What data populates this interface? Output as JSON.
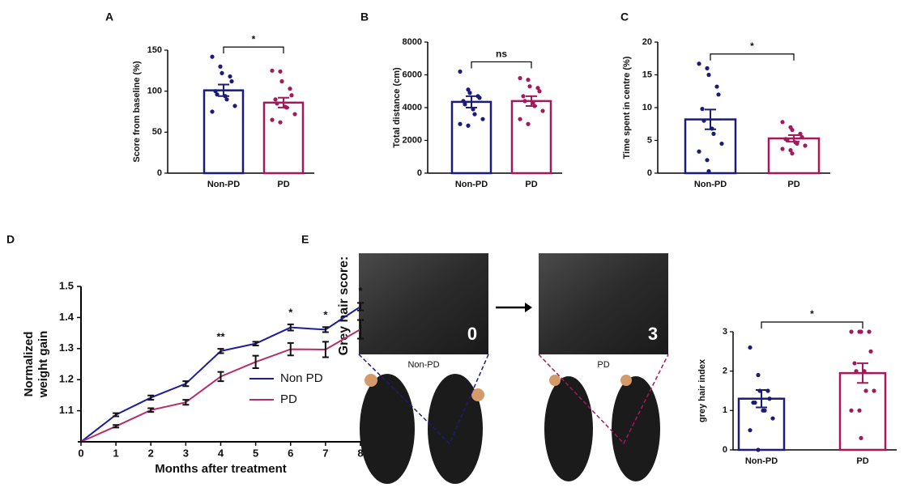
{
  "chart_data": [
    {
      "type": "bar",
      "panel": "A",
      "ylabel": "Score from baseline (%)",
      "categories": [
        "Non-PD",
        "PD"
      ],
      "colors": [
        "#1c1c78",
        "#a3195b"
      ],
      "values": [
        101,
        86
      ],
      "errors": [
        7,
        6
      ],
      "points": [
        [
          142,
          130,
          122,
          118,
          112,
          100,
          96,
          94,
          90,
          82,
          75
        ],
        [
          125,
          124,
          112,
          103,
          95,
          90,
          85,
          81,
          80,
          72,
          65,
          62
        ]
      ],
      "significance": "*",
      "ylim": [
        0,
        150
      ],
      "yticks": [
        0,
        50,
        100,
        150
      ]
    },
    {
      "type": "bar",
      "panel": "B",
      "ylabel": "Total distance (cm)",
      "categories": [
        "Non-PD",
        "PD"
      ],
      "colors": [
        "#1c1c78",
        "#a3195b"
      ],
      "values": [
        4350,
        4400
      ],
      "errors": [
        350,
        300
      ],
      "points": [
        [
          6200,
          5100,
          4900,
          4700,
          4600,
          4400,
          4200,
          3900,
          3600,
          3300,
          3000,
          2900
        ],
        [
          5800,
          5700,
          5300,
          5200,
          5000,
          4700,
          4400,
          4300,
          4100,
          3800,
          3300,
          3000
        ]
      ],
      "significance": "ns",
      "ylim": [
        0,
        8000
      ],
      "yticks": [
        0,
        2000,
        4000,
        6000,
        8000
      ]
    },
    {
      "type": "bar",
      "panel": "C",
      "ylabel": "Time spent in centre (%)",
      "categories": [
        "Non-PD",
        "PD"
      ],
      "colors": [
        "#1c1c78",
        "#a3195b"
      ],
      "values": [
        8.2,
        5.3
      ],
      "errors": [
        1.5,
        0.5
      ],
      "points": [
        [
          16.7,
          16,
          15,
          13.2,
          12,
          9.8,
          8,
          6.8,
          6,
          4.5,
          3.3,
          2,
          0.3
        ],
        [
          7.8,
          7,
          6.6,
          6,
          5.5,
          5.2,
          5,
          4.7,
          4.5,
          4.2,
          3.7,
          3.5,
          3
        ]
      ],
      "significance": "*",
      "ylim": [
        0,
        20
      ],
      "yticks": [
        0,
        5,
        10,
        15,
        20
      ]
    },
    {
      "type": "line",
      "panel": "D",
      "xlabel": "Months after treatment",
      "ylabel": [
        "Normalized",
        "weight gain"
      ],
      "x": [
        0,
        1,
        2,
        3,
        4,
        5,
        6,
        7,
        8
      ],
      "series": [
        {
          "name": "Non PD",
          "color": "#1c1c9c",
          "values": [
            1.0,
            1.087,
            1.142,
            1.187,
            1.292,
            1.316,
            1.368,
            1.361,
            1.435
          ],
          "errors": [
            0,
            0.005,
            0.007,
            0.008,
            0.007,
            0.006,
            0.01,
            0.008,
            0.012
          ]
        },
        {
          "name": "PD",
          "color": "#b42d6c",
          "values": [
            1.0,
            1.05,
            1.102,
            1.127,
            1.21,
            1.257,
            1.298,
            1.297,
            1.362
          ],
          "errors": [
            0,
            0.004,
            0.006,
            0.008,
            0.015,
            0.02,
            0.02,
            0.025,
            0.03
          ]
        }
      ],
      "annotations": [
        {
          "x": 4,
          "text": "**"
        },
        {
          "x": 6,
          "text": "*"
        },
        {
          "x": 7,
          "text": "*"
        },
        {
          "x": 8,
          "text": "*"
        }
      ],
      "xlim": [
        0,
        8
      ],
      "xticks": [
        0,
        1,
        2,
        3,
        4,
        5,
        6,
        7,
        8
      ],
      "ylim": [
        1.0,
        1.5
      ],
      "yticks": [
        1.1,
        1.2,
        1.3,
        1.4,
        1.5
      ]
    },
    {
      "type": "bar",
      "ylabel": "grey hair index",
      "categories": [
        "Non-PD",
        "PD"
      ],
      "colors": [
        "#1c1c78",
        "#a3195b"
      ],
      "values": [
        1.3,
        1.95
      ],
      "errors": [
        0.22,
        0.25
      ],
      "points": [
        [
          2.6,
          1.9,
          1.5,
          1.5,
          1.3,
          1.2,
          1.2,
          1.0,
          1.0,
          0.8,
          0.5,
          0.0
        ],
        [
          3,
          3,
          3,
          3,
          2.5,
          2.2,
          2,
          2,
          1.5,
          1.5,
          1,
          1,
          0.3
        ]
      ],
      "significance": "*",
      "ylim": [
        0,
        3
      ],
      "yticks": [
        0,
        1,
        2,
        3
      ]
    }
  ],
  "photos": {
    "panel": "E",
    "label": "Grey hair score:",
    "scores": [
      "0",
      "3"
    ],
    "groups": [
      "Non-PD",
      "PD"
    ]
  }
}
